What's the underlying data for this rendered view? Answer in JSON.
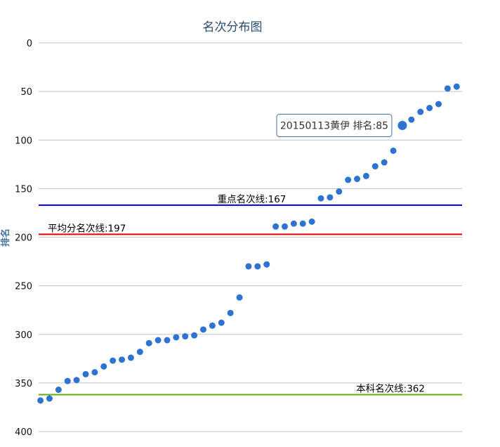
{
  "chart_data": {
    "type": "scatter",
    "title": "名次分布图",
    "ylabel": "排名",
    "ylim": [
      0,
      400
    ],
    "y_reversed": true,
    "y_ticks": [
      0,
      50,
      100,
      150,
      200,
      250,
      300,
      350,
      400
    ],
    "grid": true,
    "color": "#2f73d2",
    "points": [
      {
        "x": 1,
        "y": 368
      },
      {
        "x": 2,
        "y": 366
      },
      {
        "x": 3,
        "y": 357
      },
      {
        "x": 4,
        "y": 348
      },
      {
        "x": 5,
        "y": 347
      },
      {
        "x": 6,
        "y": 341
      },
      {
        "x": 7,
        "y": 339
      },
      {
        "x": 8,
        "y": 333
      },
      {
        "x": 9,
        "y": 327
      },
      {
        "x": 10,
        "y": 326
      },
      {
        "x": 11,
        "y": 324
      },
      {
        "x": 12,
        "y": 318
      },
      {
        "x": 13,
        "y": 309
      },
      {
        "x": 14,
        "y": 306
      },
      {
        "x": 15,
        "y": 306
      },
      {
        "x": 16,
        "y": 303
      },
      {
        "x": 17,
        "y": 302
      },
      {
        "x": 18,
        "y": 301
      },
      {
        "x": 19,
        "y": 295
      },
      {
        "x": 20,
        "y": 291
      },
      {
        "x": 21,
        "y": 288
      },
      {
        "x": 22,
        "y": 278
      },
      {
        "x": 23,
        "y": 262
      },
      {
        "x": 24,
        "y": 230
      },
      {
        "x": 25,
        "y": 230
      },
      {
        "x": 26,
        "y": 228
      },
      {
        "x": 27,
        "y": 189
      },
      {
        "x": 28,
        "y": 189
      },
      {
        "x": 29,
        "y": 186
      },
      {
        "x": 30,
        "y": 186
      },
      {
        "x": 31,
        "y": 184
      },
      {
        "x": 32,
        "y": 160
      },
      {
        "x": 33,
        "y": 159
      },
      {
        "x": 34,
        "y": 153
      },
      {
        "x": 35,
        "y": 141
      },
      {
        "x": 36,
        "y": 140
      },
      {
        "x": 37,
        "y": 137
      },
      {
        "x": 38,
        "y": 127
      },
      {
        "x": 39,
        "y": 123
      },
      {
        "x": 40,
        "y": 111
      },
      {
        "x": 41,
        "y": 85,
        "highlight": true
      },
      {
        "x": 42,
        "y": 79
      },
      {
        "x": 43,
        "y": 71
      },
      {
        "x": 44,
        "y": 67
      },
      {
        "x": 45,
        "y": 63
      },
      {
        "x": 46,
        "y": 47
      },
      {
        "x": 47,
        "y": 45
      }
    ],
    "x_range": [
      0.8,
      47.6
    ],
    "reference_lines": [
      {
        "label": "重点名次线:167",
        "value": 167,
        "color": "#0000cc",
        "label_anchor": "center"
      },
      {
        "label": "平均分名次线:197",
        "value": 197,
        "color": "#e00000",
        "label_anchor": "left"
      },
      {
        "label": "本科名次线:362",
        "value": 362,
        "color": "#66aa11",
        "label_anchor": "right"
      }
    ],
    "tooltip": {
      "text": "20150113黄伊 排名:85",
      "point_x": 41
    }
  }
}
